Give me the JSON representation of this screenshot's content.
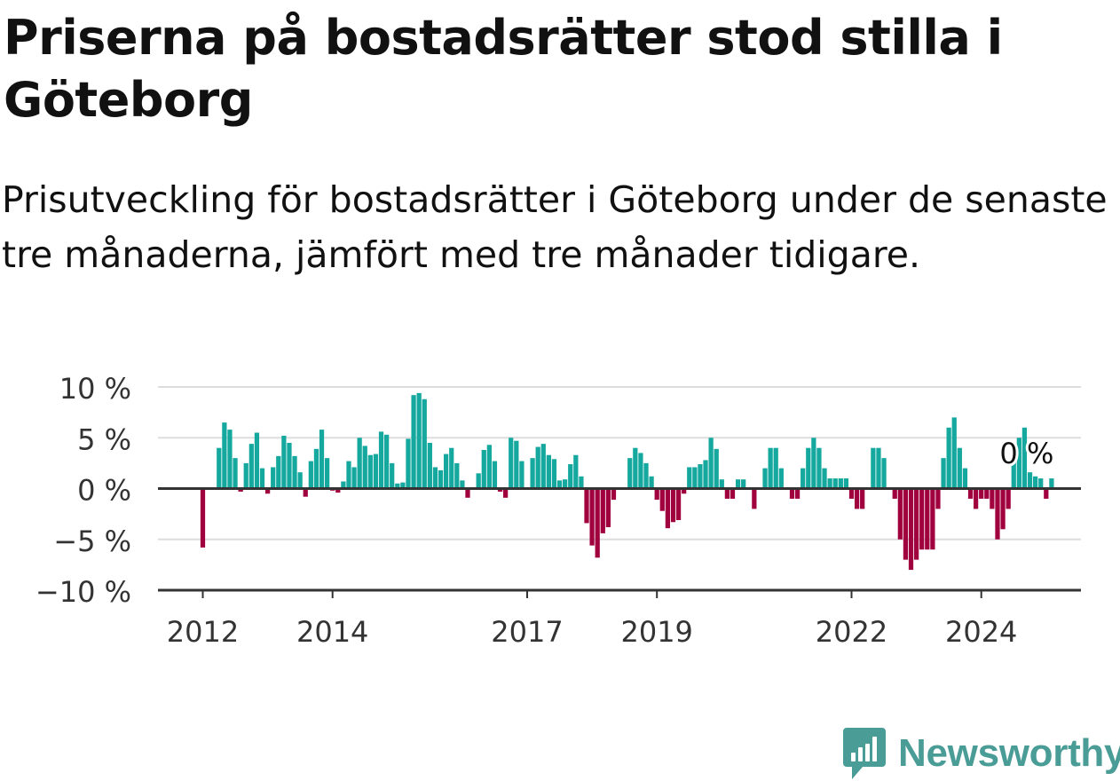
{
  "header": {
    "title": "Priserna på bostadsrätter stod stilla i Göteborg",
    "subtitle": "Prisutveckling för bostadsrätter i Göteborg under de senaste tre månaderna, jämfört med tre månader tidigare."
  },
  "brand": {
    "name": "Newsworthy",
    "color": "#4a9c96"
  },
  "colors": {
    "positive": "#15a89e",
    "negative": "#a1003e",
    "grid": "#dddddd",
    "axis": "#333333",
    "text": "#333333"
  },
  "chart_data": {
    "type": "bar",
    "ylim": [
      -10,
      10
    ],
    "yticks": [
      10,
      5,
      0,
      -5,
      -10
    ],
    "ytick_labels": [
      "10 %",
      "5 %",
      "0 %",
      "−5 %",
      "−10 %"
    ],
    "xticks": [
      {
        "year": 2012,
        "label": "2012"
      },
      {
        "year": 2014,
        "label": "2014"
      },
      {
        "year": 2017,
        "label": "2017"
      },
      {
        "year": 2019,
        "label": "2019"
      },
      {
        "year": 2022,
        "label": "2022"
      },
      {
        "year": 2024,
        "label": "2024"
      }
    ],
    "start": "2012-01",
    "last_label": "0 %",
    "values": [
      -5.8,
      0.0,
      0.0,
      4.0,
      6.5,
      5.8,
      3.0,
      -0.3,
      2.5,
      4.4,
      5.5,
      2.0,
      -0.5,
      2.1,
      3.2,
      5.2,
      4.5,
      3.2,
      1.6,
      -0.8,
      2.7,
      3.9,
      5.8,
      3.0,
      -0.2,
      -0.4,
      0.7,
      2.7,
      2.1,
      5.0,
      4.2,
      3.3,
      3.4,
      5.6,
      5.3,
      2.5,
      0.5,
      0.6,
      4.9,
      9.2,
      9.4,
      8.8,
      4.5,
      2.1,
      1.8,
      3.4,
      4.0,
      2.5,
      0.8,
      -0.9,
      0.0,
      1.5,
      3.8,
      4.3,
      2.7,
      -0.3,
      -0.9,
      5.0,
      4.7,
      2.7,
      0.0,
      3.0,
      4.1,
      4.4,
      3.3,
      2.9,
      0.8,
      0.9,
      2.4,
      3.3,
      1.2,
      -3.4,
      -5.6,
      -6.8,
      -4.4,
      -3.8,
      -1.1,
      0.0,
      0.0,
      3.0,
      4.0,
      3.5,
      2.5,
      1.2,
      -1.1,
      -2.2,
      -3.9,
      -3.3,
      -3.1,
      -0.5,
      2.1,
      2.1,
      2.4,
      2.8,
      5.0,
      3.9,
      0.9,
      -1.0,
      -1.0,
      0.9,
      0.9,
      0.0,
      -2.0,
      0.0,
      2.0,
      4.0,
      4.0,
      2.0,
      0.0,
      -1.0,
      -1.0,
      2.0,
      4.0,
      5.0,
      4.0,
      2.0,
      1.0,
      1.0,
      1.0,
      1.0,
      -1.0,
      -2.0,
      -2.0,
      0.0,
      4.0,
      4.0,
      3.0,
      0.0,
      -1.0,
      -5.0,
      -7.0,
      -8.0,
      -7.0,
      -6.0,
      -6.0,
      -6.0,
      -2.0,
      3.0,
      6.0,
      7.0,
      4.0,
      2.0,
      -1.0,
      -2.0,
      -1.0,
      -1.0,
      -2.0,
      -5.0,
      -4.0,
      -2.0,
      3.0,
      5.0,
      6.0,
      1.6,
      1.2,
      1.0,
      -1.0,
      1.0
    ]
  }
}
